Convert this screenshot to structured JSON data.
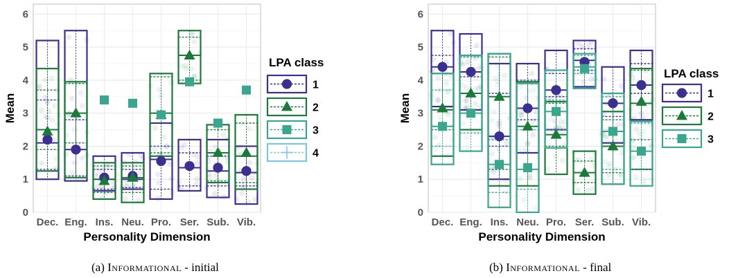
{
  "chart_data": [
    {
      "type": "box",
      "caption_prefix": "(a) ",
      "caption_name": "Informational",
      "caption_suffix": " - initial",
      "xlabel": "Personality Dimension",
      "ylabel": "Mean",
      "ylim": [
        0,
        6.3
      ],
      "yticks": [
        0,
        1,
        2,
        3,
        4,
        5,
        6
      ],
      "grid": true,
      "legend_title": "LPA class",
      "legend_position": "right",
      "categories": [
        "Dec.",
        "Eng.",
        "Ins.",
        "Neu.",
        "Pro.",
        "Ser.",
        "Sub.",
        "Vib."
      ],
      "series": [
        {
          "name": "1",
          "color": "#3b2f8f",
          "marker": "circle",
          "boxes": [
            [
              1.0,
              1.3,
              2.1,
              3.4,
              5.2
            ],
            [
              0.95,
              1.1,
              1.9,
              2.8,
              5.5
            ],
            [
              0.65,
              0.7,
              1.0,
              1.3,
              1.7
            ],
            [
              0.7,
              0.75,
              1.0,
              1.3,
              1.8
            ],
            [
              0.4,
              0.7,
              1.6,
              2.0,
              2.7
            ],
            [
              0.65,
              0.8,
              1.35,
              1.8,
              2.2
            ],
            [
              0.45,
              0.8,
              1.25,
              1.7,
              2.2
            ],
            [
              0.25,
              0.8,
              1.2,
              1.7,
              2.0
            ]
          ],
          "means": [
            2.2,
            1.9,
            1.05,
            1.1,
            1.55,
            1.4,
            1.35,
            1.25
          ]
        },
        {
          "name": "2",
          "color": "#1b7a3a",
          "marker": "triangle",
          "boxes": [
            [
              1.25,
              1.9,
              2.5,
              3.7,
              4.35
            ],
            [
              1.05,
              2.1,
              3.0,
              3.9,
              3.95
            ],
            [
              0.4,
              0.6,
              1.0,
              1.4,
              1.5
            ],
            [
              0.3,
              0.6,
              1.05,
              1.4,
              1.5
            ],
            [
              1.7,
              1.8,
              3.0,
              4.1,
              4.2
            ],
            [
              3.9,
              4.0,
              4.75,
              5.3,
              5.5
            ],
            [
              0.9,
              0.95,
              1.8,
              2.5,
              2.65
            ],
            [
              0.7,
              0.9,
              1.7,
              2.7,
              2.95
            ]
          ],
          "means": [
            2.45,
            3.0,
            0.95,
            1.05,
            2.95,
            4.75,
            1.8,
            1.8
          ]
        },
        {
          "name": "3",
          "color": "#3aa68e",
          "marker": "square",
          "boxes": null,
          "means": [
            null,
            null,
            3.4,
            3.3,
            2.95,
            3.95,
            2.7,
            3.7
          ]
        },
        {
          "name": "4",
          "color": "#7cc4e9",
          "marker": "cross",
          "boxes": null,
          "means": [
            null,
            null,
            null,
            null,
            null,
            null,
            null,
            null
          ]
        }
      ]
    },
    {
      "type": "box",
      "caption_prefix": "(b) ",
      "caption_name": "Informational",
      "caption_suffix": " - final",
      "xlabel": "Personality Dimension",
      "ylabel": "Mean",
      "ylim": [
        0,
        6.3
      ],
      "yticks": [
        0,
        1,
        2,
        3,
        4,
        5,
        6
      ],
      "grid": true,
      "legend_title": "LPA class",
      "legend_position": "right",
      "categories": [
        "Dec.",
        "Eng.",
        "Ins.",
        "Neu.",
        "Pro.",
        "Ser.",
        "Sub.",
        "Vib."
      ],
      "series": [
        {
          "name": "1",
          "color": "#3b2f8f",
          "marker": "circle",
          "boxes": [
            [
              3.2,
              4.2,
              4.4,
              4.75,
              5.5
            ],
            [
              3.1,
              4.1,
              4.25,
              4.7,
              5.4
            ],
            [
              1.0,
              2.0,
              2.3,
              3.6,
              4.5
            ],
            [
              1.8,
              2.8,
              3.15,
              4.0,
              4.5
            ],
            [
              2.5,
              3.5,
              3.7,
              4.2,
              4.9
            ],
            [
              3.8,
              4.3,
              4.6,
              4.95,
              5.2
            ],
            [
              2.1,
              2.9,
              3.3,
              3.6,
              4.4
            ],
            [
              2.8,
              3.6,
              3.85,
              4.5,
              4.9
            ]
          ],
          "means": [
            4.4,
            4.25,
            2.3,
            3.15,
            3.7,
            4.55,
            3.3,
            3.85
          ]
        },
        {
          "name": "2",
          "color": "#1b7a3a",
          "marker": "triangle",
          "boxes": [
            [
              1.7,
              2.5,
              3.1,
              4.2,
              4.2
            ],
            [
              2.5,
              2.5,
              3.6,
              4.7,
              4.75
            ],
            [
              0.8,
              1.3,
              3.5,
              4.7,
              4.8
            ],
            [
              0.8,
              1.3,
              2.6,
              3.9,
              3.95
            ],
            [
              1.15,
              2.0,
              2.35,
              3.3,
              3.35
            ],
            [
              0.55,
              0.9,
              1.2,
              1.55,
              1.85
            ],
            [
              0.85,
              1.2,
              2.0,
              2.8,
              3.05
            ],
            [
              1.3,
              2.2,
              3.3,
              4.3,
              4.35
            ]
          ],
          "means": [
            3.15,
            3.6,
            3.5,
            2.6,
            2.35,
            1.2,
            2.0,
            3.35
          ]
        },
        {
          "name": "3",
          "color": "#3aa68e",
          "marker": "square",
          "boxes": [
            [
              1.45,
              2.0,
              2.6,
              3.7,
              4.2
            ],
            [
              1.85,
              2.4,
              3.0,
              4.7,
              4.75
            ],
            [
              0.15,
              0.6,
              1.45,
              2.2,
              4.8
            ],
            [
              0.0,
              0.7,
              1.3,
              2.5,
              3.9
            ],
            [
              1.95,
              2.5,
              3.05,
              3.4,
              4.3
            ],
            [
              3.75,
              4.2,
              4.4,
              4.75,
              4.8
            ],
            [
              0.85,
              1.3,
              2.45,
              3.5,
              3.6
            ],
            [
              0.8,
              1.3,
              1.85,
              2.7,
              2.75
            ]
          ],
          "means": [
            2.6,
            3.0,
            1.45,
            1.35,
            3.05,
            4.35,
            2.45,
            1.85
          ]
        }
      ]
    }
  ]
}
